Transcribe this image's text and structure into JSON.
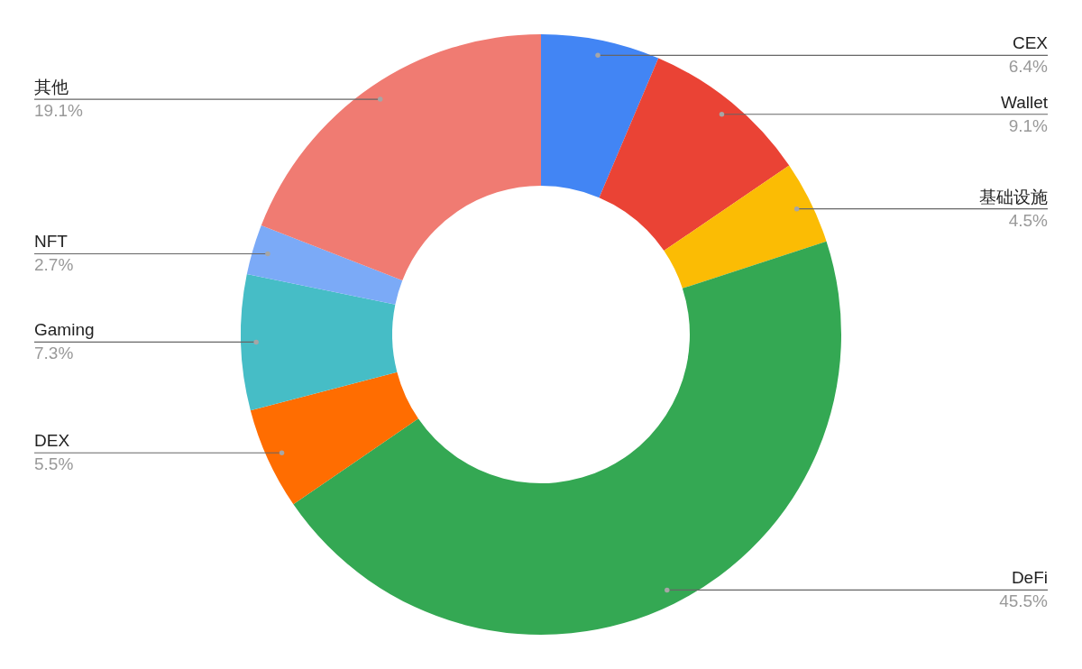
{
  "chart_data": {
    "type": "donut",
    "categories": [
      "CEX",
      "Wallet",
      "基础设施",
      "DeFi",
      "DEX",
      "Gaming",
      "NFT",
      "其他"
    ],
    "values": [
      6.4,
      9.1,
      4.5,
      45.5,
      5.5,
      7.3,
      2.7,
      19.1
    ],
    "colors": [
      "#4285f4",
      "#ea4335",
      "#fbbc04",
      "#34a853",
      "#ff6d01",
      "#46bdc6",
      "#7baaf7",
      "#f07b72"
    ],
    "value_labels": [
      "6.4%",
      "9.1%",
      "4.5%",
      "45.5%",
      "5.5%",
      "7.3%",
      "2.7%",
      "19.1%"
    ]
  }
}
